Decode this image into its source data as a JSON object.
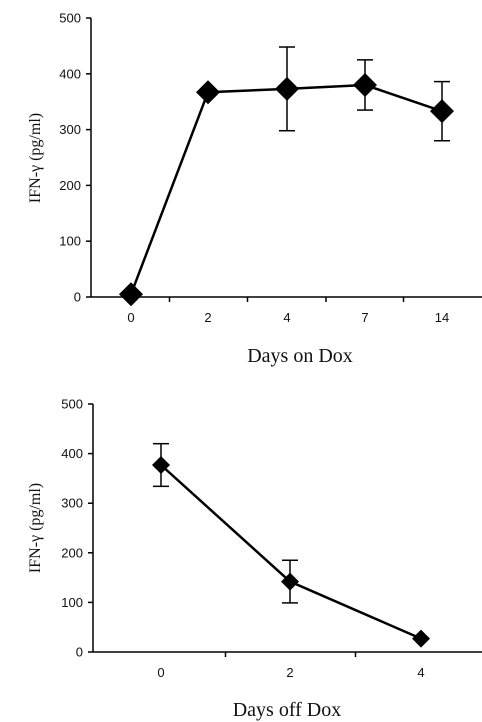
{
  "chart_data": [
    {
      "type": "line",
      "categories": [
        "0",
        "2",
        "4",
        "7",
        "14"
      ],
      "series": [
        {
          "values": [
            5,
            367,
            373,
            380,
            333
          ],
          "error": [
            0,
            0,
            75,
            45,
            53
          ]
        }
      ],
      "xlabel": "Days on Dox",
      "ylabel": "IFN-γ (pg/ml)",
      "ylim": [
        0,
        500
      ],
      "yticks": [
        "0",
        "100",
        "200",
        "300",
        "400",
        "500"
      ],
      "grid": false,
      "marker": "diamond",
      "color": "#000000"
    },
    {
      "type": "line",
      "categories": [
        "0",
        "2",
        "4"
      ],
      "series": [
        {
          "values": [
            377,
            142,
            27
          ],
          "error": [
            43,
            43,
            0
          ]
        }
      ],
      "xlabel": "Days off Dox",
      "ylabel": "IFN-γ (pg/ml)",
      "ylim": [
        0,
        500
      ],
      "yticks": [
        "0",
        "100",
        "200",
        "300",
        "400",
        "500"
      ],
      "grid": false,
      "marker": "diamond",
      "color": "#000000"
    }
  ]
}
